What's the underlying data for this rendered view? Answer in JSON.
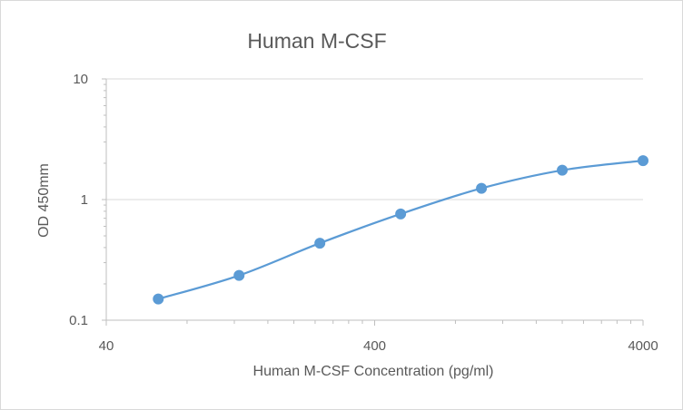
{
  "chart_data": {
    "type": "line",
    "title": "Human M-CSF",
    "xlabel": "Human M-CSF Concentration (pg/ml)",
    "ylabel": "OD 450mm",
    "x_scale": "log",
    "y_scale": "log",
    "xlim": [
      40,
      4000
    ],
    "ylim": [
      0.1,
      10
    ],
    "x_ticks": [
      {
        "value": 40,
        "label": "40"
      },
      {
        "value": 400,
        "label": "400"
      },
      {
        "value": 4000,
        "label": "4000"
      }
    ],
    "y_ticks": [
      {
        "value": 10,
        "label": "10"
      },
      {
        "value": 1,
        "label": "1"
      },
      {
        "value": 0.1,
        "label": "0.1"
      }
    ],
    "grid": true,
    "series": [
      {
        "name": "Human M-CSF",
        "color": "#5b9bd5",
        "smooth": true,
        "x": [
          62.5,
          125,
          250,
          500,
          1000,
          2000,
          4000
        ],
        "y": [
          0.15,
          0.235,
          0.435,
          0.76,
          1.24,
          1.75,
          2.1
        ]
      }
    ]
  }
}
